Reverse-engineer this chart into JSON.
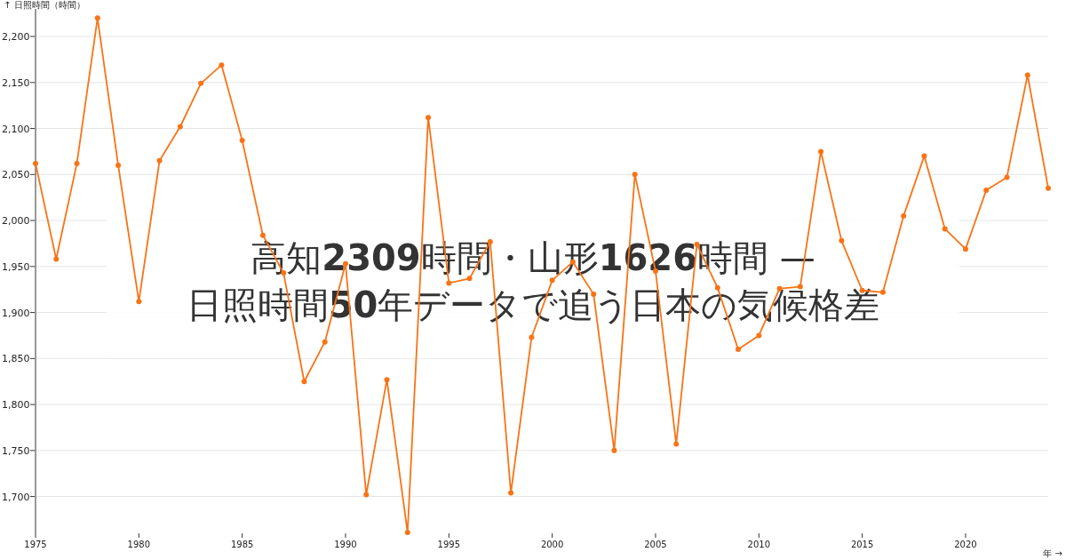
{
  "chart_data": {
    "type": "line",
    "title": "高知2309時間・山形1626時間 —",
    "subtitle": "日照時間50年データで追う日本の気候格差",
    "ylabel": "↑ 日照時間（時間）",
    "xlabel": "年 →",
    "x": [
      1975,
      1976,
      1977,
      1978,
      1979,
      1980,
      1981,
      1982,
      1983,
      1984,
      1985,
      1986,
      1987,
      1988,
      1989,
      1990,
      1991,
      1992,
      1993,
      1994,
      1995,
      1996,
      1997,
      1998,
      1999,
      2000,
      2001,
      2002,
      2003,
      2004,
      2005,
      2006,
      2007,
      2008,
      2009,
      2010,
      2011,
      2012,
      2013,
      2014,
      2015,
      2016,
      2017,
      2018,
      2019,
      2020,
      2021,
      2022,
      2023,
      2024
    ],
    "series": [
      {
        "color": "#f97316",
        "values": [
          2062,
          1958,
          2062,
          2220,
          2060,
          1912,
          2065,
          2102,
          2149,
          2169,
          2087,
          1984,
          1943,
          1825,
          1868,
          1953,
          1702,
          1827,
          1661,
          2112,
          1932,
          1937,
          1977,
          1704,
          1873,
          1935,
          1955,
          1920,
          1750,
          2050,
          1945,
          1757,
          1974,
          1927,
          1860,
          1875,
          1926,
          1928,
          2075,
          1978,
          1924,
          1922,
          2005,
          2070,
          1991,
          1969,
          2033,
          2047,
          2158,
          2035
        ]
      }
    ],
    "xlim": [
      1975,
      2024
    ],
    "ylim": [
      1660,
      2230
    ],
    "xticks": [
      1975,
      1980,
      1985,
      1990,
      1995,
      2000,
      2005,
      2010,
      2015,
      2020
    ],
    "yticks": [
      {
        "value": 1700,
        "label": "1,700"
      },
      {
        "value": 1750,
        "label": "1,750"
      },
      {
        "value": 1800,
        "label": "1,800"
      },
      {
        "value": 1850,
        "label": "1,850"
      },
      {
        "value": 1900,
        "label": "1,900"
      },
      {
        "value": 1950,
        "label": "1,950"
      },
      {
        "value": 2000,
        "label": "2,000"
      },
      {
        "value": 2050,
        "label": "2,050"
      },
      {
        "value": 2100,
        "label": "2,100"
      },
      {
        "value": 2150,
        "label": "2,150"
      },
      {
        "value": 2200,
        "label": "2,200"
      }
    ],
    "grid": "y",
    "marker": "circle",
    "line_style": "solid"
  }
}
